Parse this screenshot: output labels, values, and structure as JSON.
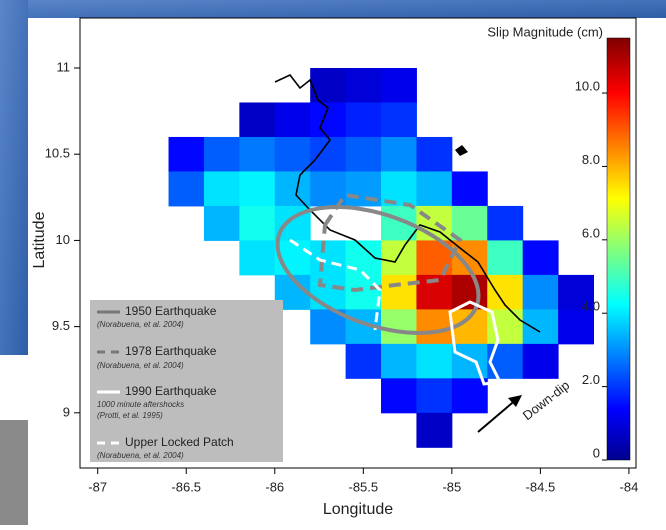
{
  "chart_data": {
    "type": "heatmap",
    "xlabel": "Longitude",
    "ylabel": "Latitude",
    "x": [
      -86.9,
      -86.7,
      -86.5,
      -86.3,
      -86.1,
      -85.9,
      -85.7,
      -85.5,
      -85.3,
      -85.1,
      -84.9,
      -84.7,
      -84.5,
      -84.3,
      -84.1
    ],
    "y": [
      11.1,
      10.9,
      10.7,
      10.5,
      10.3,
      10.1,
      9.9,
      9.7,
      9.5,
      9.3,
      9.1,
      8.9,
      8.7
    ],
    "values": [
      [
        null,
        null,
        null,
        null,
        null,
        null,
        null,
        null,
        null,
        null,
        null,
        null,
        null,
        null,
        null
      ],
      [
        null,
        null,
        null,
        null,
        null,
        null,
        0.8,
        1.0,
        1.2,
        null,
        null,
        null,
        null,
        null,
        null
      ],
      [
        null,
        null,
        null,
        null,
        0.8,
        1.2,
        1.5,
        1.8,
        2.0,
        null,
        null,
        null,
        null,
        null,
        null
      ],
      [
        null,
        null,
        1.5,
        2.5,
        2.8,
        2.5,
        2.2,
        2.5,
        3.0,
        2.0,
        null,
        null,
        null,
        null,
        null
      ],
      [
        null,
        null,
        2.5,
        4.0,
        4.2,
        3.5,
        3.0,
        3.2,
        4.0,
        3.5,
        1.5,
        null,
        null,
        null,
        null
      ],
      [
        null,
        null,
        null,
        3.5,
        4.5,
        4.0,
        null,
        null,
        5.0,
        6.5,
        5.5,
        2.0,
        null,
        null,
        null
      ],
      [
        null,
        null,
        null,
        null,
        4.0,
        4.2,
        4.0,
        4.5,
        6.5,
        9.0,
        8.5,
        5.0,
        1.5,
        null,
        null
      ],
      [
        null,
        null,
        null,
        null,
        null,
        3.5,
        4.0,
        4.5,
        7.5,
        10.5,
        11.0,
        7.5,
        3.0,
        1.0,
        null
      ],
      [
        null,
        null,
        null,
        null,
        null,
        null,
        3.0,
        3.5,
        6.0,
        8.5,
        8.0,
        6.5,
        3.5,
        1.2,
        null
      ],
      [
        null,
        null,
        null,
        null,
        null,
        null,
        null,
        2.0,
        3.5,
        4.0,
        3.5,
        2.5,
        1.2,
        null,
        null
      ],
      [
        null,
        null,
        null,
        null,
        null,
        null,
        null,
        null,
        1.5,
        2.0,
        1.5,
        null,
        null,
        null,
        null
      ],
      [
        null,
        null,
        null,
        null,
        null,
        null,
        null,
        null,
        null,
        0.8,
        null,
        null,
        null,
        null,
        null
      ],
      [
        null,
        null,
        null,
        null,
        null,
        null,
        null,
        null,
        null,
        null,
        null,
        null,
        null,
        null,
        null
      ]
    ],
    "xlim": [
      -87.1,
      -83.96
    ],
    "ylim": [
      8.68,
      11.29
    ],
    "xticks": [
      -87,
      -86.5,
      -86,
      -85.5,
      -85,
      -84.5,
      -84
    ],
    "yticks": [
      9,
      9.5,
      10,
      10.5,
      11
    ],
    "colorbar": {
      "label": "Slip Magnitude (cm)",
      "lim": [
        0,
        11.5
      ],
      "ticks": [
        0,
        {
          "value": 2,
          "label": "2.0"
        },
        {
          "value": 4,
          "label": "4.0"
        },
        {
          "value": 6,
          "label": "6.0"
        },
        {
          "value": 8,
          "label": "8.0"
        },
        {
          "value": 10,
          "label": "10.0"
        }
      ]
    },
    "legend": [
      {
        "name": "1950 Earthquake",
        "source": "(Norabuena, et al. 2004)"
      },
      {
        "name": "1978 Earthquake",
        "source": "(Norabuena, et al. 2004)"
      },
      {
        "name": "1990 Earthquake",
        "note": "1000 minute aftershocks",
        "source": "(Protti, et al. 1995)"
      },
      {
        "name": "Upper Locked Patch",
        "source": "(Norabuena, et al. 2004)"
      }
    ],
    "annotation": "Down-dip"
  }
}
